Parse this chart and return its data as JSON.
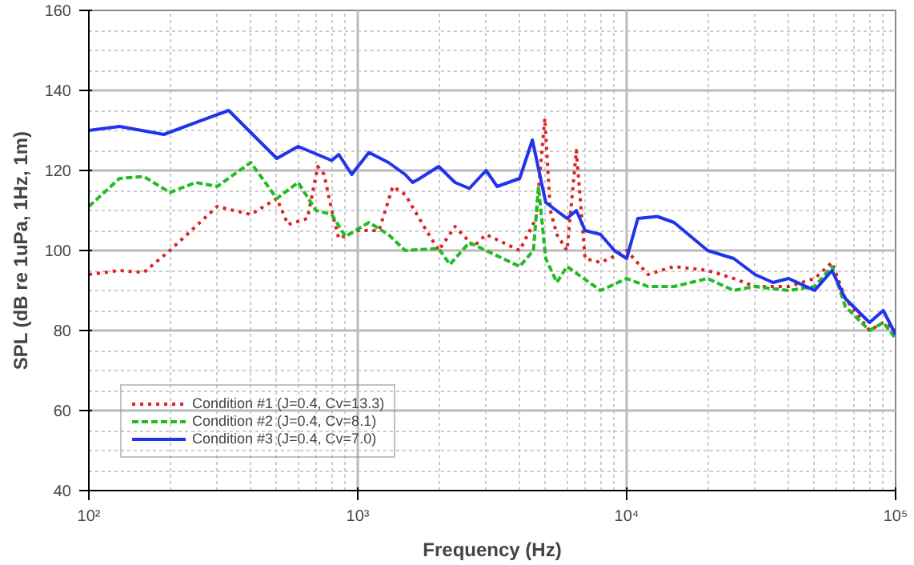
{
  "chart_data": {
    "type": "line",
    "xlabel": "Frequency (Hz)",
    "ylabel": "SPL (dB re 1uPa, 1Hz, 1m)",
    "log": "x",
    "grid": true,
    "legend": "bottom left",
    "xlim": [
      100,
      100000
    ],
    "xticks": [
      {
        "value": 100,
        "label": "10²"
      },
      {
        "value": 1000,
        "label": "10³"
      },
      {
        "value": 10000,
        "label": "10⁴"
      },
      {
        "value": 100000,
        "label": "10⁵"
      }
    ],
    "ylim": [
      40,
      160
    ],
    "yticks": [
      40,
      60,
      80,
      100,
      120,
      140,
      160
    ],
    "series": [
      {
        "name": "Condition #1 (J=0.4, Cv=13.3)",
        "color": "#dd2222",
        "line_style": "dotted",
        "x": [
          100,
          130,
          160,
          200,
          300,
          400,
          500,
          550,
          650,
          710,
          750,
          800,
          850,
          1000,
          1200,
          1350,
          1500,
          1800,
          2000,
          2300,
          2700,
          3000,
          4000,
          4600,
          4960,
          5200,
          5500,
          6000,
          6500,
          7000,
          8000,
          10000,
          12000,
          15000,
          20000,
          25000,
          30000,
          40000,
          50000,
          58000,
          65000,
          80000,
          90000,
          100000
        ],
        "values": [
          94,
          95,
          94.5,
          100,
          111,
          109,
          113,
          106.5,
          108,
          121,
          119,
          110,
          103,
          105,
          105,
          116,
          114,
          105,
          100,
          106,
          101,
          104,
          100,
          108,
          133,
          110,
          104,
          100,
          125,
          98,
          97,
          100,
          94,
          96,
          95,
          93,
          91,
          91,
          93,
          97,
          88,
          80,
          82,
          80
        ]
      },
      {
        "name": "Condition #2 (J=0.4, Cv=8.1)",
        "color": "#22bb22",
        "line_style": "dashed",
        "x": [
          100,
          130,
          160,
          200,
          250,
          300,
          400,
          500,
          600,
          700,
          800,
          900,
          1100,
          1300,
          1500,
          2000,
          2200,
          2600,
          3000,
          4000,
          4500,
          4700,
          5000,
          5500,
          6000,
          8000,
          10000,
          12000,
          15000,
          20000,
          25000,
          30000,
          40000,
          50000,
          58000,
          65000,
          80000,
          90000,
          100000
        ],
        "values": [
          111,
          118,
          118.5,
          114.5,
          117,
          116,
          122,
          113,
          117,
          110,
          109,
          103.5,
          107,
          104,
          100,
          100.5,
          96.5,
          102,
          100,
          96,
          100,
          116,
          98,
          92,
          96,
          90,
          93,
          91,
          91,
          93,
          90,
          91,
          90,
          91,
          96,
          86,
          80,
          82,
          78
        ]
      },
      {
        "name": "Condition #3 (J=0.4, Cv=7.0)",
        "color": "#2233ee",
        "line_style": "solid",
        "x": [
          100,
          130,
          190,
          331,
          500,
          600,
          800,
          850,
          950,
          1100,
          1300,
          1500,
          1600,
          1700,
          2000,
          2300,
          2600,
          3000,
          3300,
          4000,
          4460,
          5000,
          6000,
          6500,
          7000,
          8000,
          9000,
          10000,
          11000,
          13000,
          15000,
          20000,
          25000,
          30000,
          35000,
          40000,
          50000,
          58000,
          65000,
          80000,
          90000,
          100000
        ],
        "values": [
          130,
          131,
          129,
          135,
          123,
          126,
          122.5,
          124,
          119,
          124.5,
          122,
          119,
          117,
          118,
          121,
          117,
          115.5,
          120,
          116,
          118,
          127.6,
          112,
          108,
          110,
          105,
          104,
          100,
          98,
          108,
          108.5,
          107,
          100,
          98,
          94,
          92,
          93,
          90,
          95,
          88,
          82,
          85,
          79
        ]
      }
    ]
  }
}
